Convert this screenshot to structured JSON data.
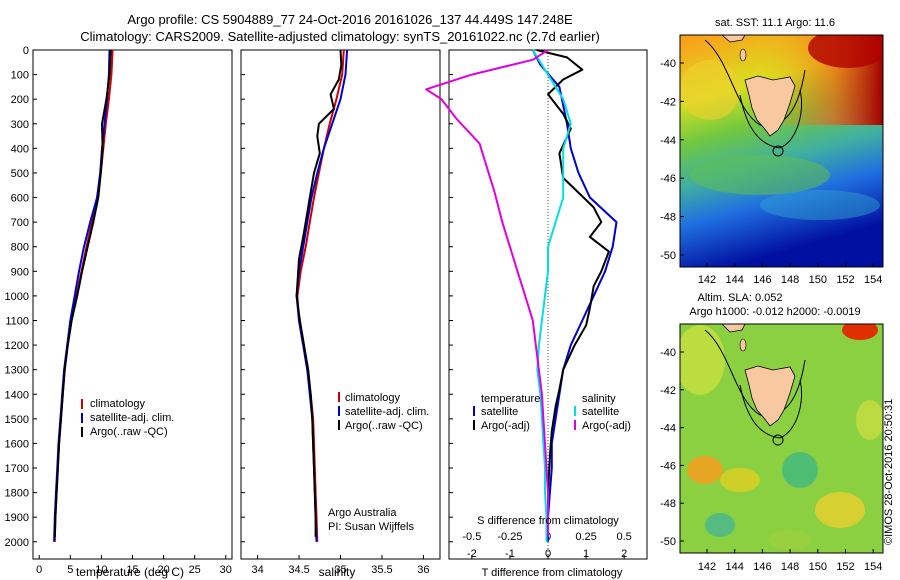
{
  "header": {
    "line1": "Argo profile: CS 5904889_77 24-Oct-2016 20161026_137 44.449S 147.248E",
    "line2": "Climatology: CARS2009. Satellite-adjusted climatology: synTS_20161022.nc (2.7d earlier)"
  },
  "colors": {
    "red": "#d00000",
    "blue": "#0000d0",
    "black": "#000000",
    "cyan": "#00e0e0",
    "magenta": "#e000e0",
    "land": "#f8c8a0"
  },
  "chart_data": [
    {
      "type": "line",
      "id": "temperature",
      "xlabel": "temperature (deg C)",
      "xlim": [
        -1,
        31
      ],
      "xticks": [
        "0",
        "5",
        "10",
        "15",
        "20",
        "25",
        "30"
      ],
      "ylim": [
        0,
        2070
      ],
      "yticks": [
        "0",
        "100",
        "200",
        "300",
        "400",
        "500",
        "600",
        "700",
        "800",
        "900",
        "1000",
        "1100",
        "1200",
        "1300",
        "1400",
        "1500",
        "1600",
        "1700",
        "1800",
        "1900",
        "2000"
      ],
      "legend": [
        "climatology",
        "satellite-adj. clim.",
        "Argo(..raw -QC)"
      ],
      "series": [
        {
          "name": "climatology",
          "color": "red",
          "points": [
            [
              11.8,
              0
            ],
            [
              11.6,
              100
            ],
            [
              11.2,
              200
            ],
            [
              10.7,
              300
            ],
            [
              10.3,
              400
            ],
            [
              9.9,
              500
            ],
            [
              9.3,
              600
            ],
            [
              8.5,
              700
            ],
            [
              7.6,
              800
            ],
            [
              6.8,
              900
            ],
            [
              6.0,
              1000
            ],
            [
              5.2,
              1100
            ],
            [
              4.6,
              1200
            ],
            [
              4.1,
              1300
            ],
            [
              3.8,
              1400
            ],
            [
              3.5,
              1500
            ],
            [
              3.2,
              1600
            ],
            [
              3.0,
              1700
            ],
            [
              2.8,
              1800
            ],
            [
              2.6,
              1900
            ],
            [
              2.5,
              2000
            ]
          ]
        },
        {
          "name": "satellite-adj. clim.",
          "color": "blue",
          "points": [
            [
              11.3,
              0
            ],
            [
              11.2,
              100
            ],
            [
              10.9,
              200
            ],
            [
              10.5,
              300
            ],
            [
              10.1,
              400
            ],
            [
              9.8,
              500
            ],
            [
              9.3,
              600
            ],
            [
              8.2,
              700
            ],
            [
              7.2,
              800
            ],
            [
              6.4,
              900
            ],
            [
              5.7,
              1000
            ],
            [
              5.0,
              1100
            ],
            [
              4.5,
              1200
            ],
            [
              4.0,
              1300
            ],
            [
              3.7,
              1400
            ],
            [
              3.4,
              1500
            ],
            [
              3.1,
              1600
            ],
            [
              2.9,
              1700
            ],
            [
              2.7,
              1800
            ],
            [
              2.5,
              1900
            ],
            [
              2.4,
              2000
            ]
          ]
        },
        {
          "name": "Argo",
          "color": "black",
          "points": [
            [
              11.5,
              0
            ],
            [
              11.3,
              100
            ],
            [
              10.8,
              200
            ],
            [
              10.1,
              300
            ],
            [
              10.2,
              400
            ],
            [
              9.9,
              500
            ],
            [
              9.5,
              600
            ],
            [
              8.7,
              700
            ],
            [
              7.8,
              800
            ],
            [
              6.9,
              900
            ],
            [
              6.1,
              1000
            ],
            [
              5.2,
              1100
            ],
            [
              4.6,
              1200
            ],
            [
              4.1,
              1300
            ],
            [
              3.8,
              1400
            ],
            [
              3.5,
              1500
            ],
            [
              3.2,
              1600
            ],
            [
              3.0,
              1700
            ],
            [
              2.8,
              1800
            ],
            [
              2.6,
              1900
            ],
            [
              2.5,
              1980
            ]
          ]
        }
      ]
    },
    {
      "type": "line",
      "id": "salinity",
      "xlabel": "salinity",
      "xlim": [
        33.8,
        36.2
      ],
      "xticks": [
        "34",
        "34.5",
        "35",
        "35.5",
        "36"
      ],
      "ylim": [
        0,
        2070
      ],
      "legend": [
        "climatology",
        "satellite-adj. clim.",
        "Argo(..raw -QC)"
      ],
      "annotation": [
        "Argo Australia",
        "PI: Susan Wijffels"
      ],
      "series": [
        {
          "name": "climatology",
          "color": "red",
          "points": [
            [
              35.04,
              0
            ],
            [
              35.02,
              100
            ],
            [
              34.95,
              200
            ],
            [
              34.87,
              300
            ],
            [
              34.8,
              400
            ],
            [
              34.74,
              500
            ],
            [
              34.68,
              600
            ],
            [
              34.63,
              700
            ],
            [
              34.58,
              800
            ],
            [
              34.52,
              900
            ],
            [
              34.48,
              1000
            ],
            [
              34.5,
              1100
            ],
            [
              34.55,
              1200
            ],
            [
              34.6,
              1300
            ],
            [
              34.64,
              1400
            ],
            [
              34.67,
              1500
            ],
            [
              34.68,
              1600
            ],
            [
              34.69,
              1700
            ],
            [
              34.7,
              1800
            ],
            [
              34.71,
              1900
            ],
            [
              34.72,
              2000
            ]
          ]
        },
        {
          "name": "satellite-adj. clim.",
          "color": "blue",
          "points": [
            [
              35.08,
              0
            ],
            [
              35.06,
              100
            ],
            [
              35.0,
              200
            ],
            [
              34.9,
              300
            ],
            [
              34.8,
              400
            ],
            [
              34.72,
              500
            ],
            [
              34.65,
              600
            ],
            [
              34.6,
              700
            ],
            [
              34.55,
              800
            ],
            [
              34.5,
              900
            ],
            [
              34.47,
              1000
            ],
            [
              34.5,
              1100
            ],
            [
              34.55,
              1200
            ],
            [
              34.6,
              1300
            ],
            [
              34.63,
              1400
            ],
            [
              34.66,
              1500
            ],
            [
              34.67,
              1600
            ],
            [
              34.68,
              1700
            ],
            [
              34.69,
              1800
            ],
            [
              34.7,
              1900
            ],
            [
              34.71,
              2000
            ]
          ]
        },
        {
          "name": "Argo",
          "color": "black",
          "points": [
            [
              35.0,
              0
            ],
            [
              35.01,
              60
            ],
            [
              34.98,
              120
            ],
            [
              34.88,
              180
            ],
            [
              34.92,
              240
            ],
            [
              34.74,
              300
            ],
            [
              34.72,
              350
            ],
            [
              34.75,
              420
            ],
            [
              34.68,
              500
            ],
            [
              34.63,
              600
            ],
            [
              34.58,
              700
            ],
            [
              34.55,
              760
            ],
            [
              34.5,
              850
            ],
            [
              34.48,
              950
            ],
            [
              34.47,
              1000
            ],
            [
              34.51,
              1100
            ],
            [
              34.56,
              1200
            ],
            [
              34.61,
              1300
            ],
            [
              34.64,
              1400
            ],
            [
              34.66,
              1500
            ],
            [
              34.67,
              1600
            ],
            [
              34.68,
              1700
            ],
            [
              34.69,
              1800
            ],
            [
              34.7,
              1900
            ],
            [
              34.7,
              1980
            ]
          ]
        }
      ]
    },
    {
      "type": "line",
      "id": "difference",
      "xlabel": "T difference from climatology",
      "xlabel2": "S difference from climatology",
      "xlim": [
        -2.6,
        2.6
      ],
      "xticks_T": [
        "-2",
        "-1",
        "0",
        "1",
        "2"
      ],
      "xticks_S": [
        "-0.5",
        "-0.25",
        "0",
        "0.25",
        "0.5"
      ],
      "ylim": [
        0,
        2070
      ],
      "legend": {
        "temperature": "temperature",
        "salinity": "salinity",
        "satellite": "satellite",
        "argo": "Argo(-adj)"
      },
      "series": [
        {
          "name": "T satellite",
          "color": "blue",
          "points": [
            [
              -0.4,
              0
            ],
            [
              -0.2,
              60
            ],
            [
              0.3,
              150
            ],
            [
              0.5,
              300
            ],
            [
              0.6,
              400
            ],
            [
              0.8,
              500
            ],
            [
              1.1,
              600
            ],
            [
              1.8,
              700
            ],
            [
              1.7,
              800
            ],
            [
              1.5,
              900
            ],
            [
              1.2,
              1000
            ],
            [
              0.9,
              1100
            ],
            [
              0.6,
              1200
            ],
            [
              0.4,
              1300
            ],
            [
              0.3,
              1400
            ],
            [
              0.2,
              1500
            ],
            [
              0.1,
              1600
            ],
            [
              0.1,
              1700
            ],
            [
              0.05,
              1800
            ],
            [
              0.0,
              1900
            ],
            [
              0.0,
              2000
            ]
          ]
        },
        {
          "name": "T Argo",
          "color": "black",
          "points": [
            [
              -0.3,
              0
            ],
            [
              0.5,
              30
            ],
            [
              0.9,
              80
            ],
            [
              0.4,
              120
            ],
            [
              0.0,
              180
            ],
            [
              0.4,
              260
            ],
            [
              0.6,
              320
            ],
            [
              0.3,
              420
            ],
            [
              0.4,
              520
            ],
            [
              1.2,
              640
            ],
            [
              1.4,
              700
            ],
            [
              1.1,
              760
            ],
            [
              1.6,
              820
            ],
            [
              1.4,
              900
            ],
            [
              1.2,
              960
            ],
            [
              1.1,
              1050
            ],
            [
              1.0,
              1120
            ],
            [
              0.7,
              1200
            ],
            [
              0.4,
              1300
            ],
            [
              0.3,
              1380
            ],
            [
              0.2,
              1450
            ],
            [
              0.1,
              1550
            ],
            [
              0.05,
              1650
            ],
            [
              0.0,
              1800
            ],
            [
              0.0,
              1980
            ]
          ]
        },
        {
          "name": "S satellite",
          "color": "cyan",
          "points": [
            [
              -0.1,
              0
            ],
            [
              0.0,
              100
            ],
            [
              0.1,
              200
            ],
            [
              0.15,
              300
            ],
            [
              0.1,
              400
            ],
            [
              0.1,
              500
            ],
            [
              0.1,
              600
            ],
            [
              0.05,
              700
            ],
            [
              0.0,
              800
            ],
            [
              0.0,
              900
            ],
            [
              -0.02,
              1000
            ],
            [
              -0.04,
              1100
            ],
            [
              -0.06,
              1200
            ],
            [
              -0.07,
              1300
            ],
            [
              -0.05,
              1400
            ],
            [
              -0.04,
              1500
            ],
            [
              -0.03,
              1600
            ],
            [
              -0.02,
              1700
            ],
            [
              -0.02,
              1800
            ],
            [
              -0.01,
              1900
            ],
            [
              -0.01,
              2000
            ]
          ]
        },
        {
          "name": "S Argo",
          "color": "magenta",
          "points": [
            [
              0.0,
              0
            ],
            [
              -0.1,
              40
            ],
            [
              -0.5,
              100
            ],
            [
              -0.8,
              160
            ],
            [
              -0.7,
              200
            ],
            [
              -0.6,
              280
            ],
            [
              -0.45,
              380
            ],
            [
              -0.4,
              480
            ],
            [
              -0.35,
              580
            ],
            [
              -0.3,
              700
            ],
            [
              -0.25,
              800
            ],
            [
              -0.2,
              900
            ],
            [
              -0.15,
              1000
            ],
            [
              -0.1,
              1100
            ],
            [
              -0.08,
              1200
            ],
            [
              -0.06,
              1300
            ],
            [
              -0.04,
              1400
            ],
            [
              -0.03,
              1500
            ],
            [
              -0.02,
              1600
            ],
            [
              -0.01,
              1700
            ],
            [
              0.0,
              1800
            ],
            [
              0.0,
              1980
            ]
          ]
        }
      ]
    }
  ],
  "maps": {
    "sst_title": "sat. SST: 11.1  Argo: 11.6",
    "sla_title1": "Altim. SLA: 0.052",
    "sla_title2": "Argo h1000: -0.012 h2000: -0.0019",
    "lat_ticks": [
      "-40",
      "-42",
      "-44",
      "-46",
      "-48",
      "-50"
    ],
    "lon_ticks": [
      "142",
      "144",
      "146",
      "148",
      "150",
      "152",
      "154"
    ]
  },
  "watermark": "©IMOS 28-Oct-2016 20:50:31"
}
